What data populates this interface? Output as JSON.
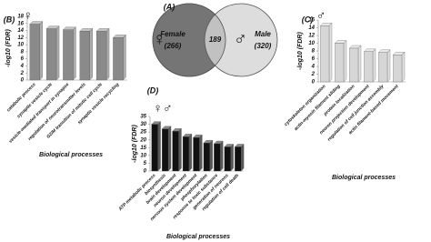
{
  "chart_data": [
    {
      "type": "venn",
      "panel": "(A)",
      "categories": [
        "Female",
        "Male"
      ],
      "values": [
        266,
        320
      ],
      "value_labels": [
        "(266)",
        "(320)"
      ],
      "intersection": 189,
      "symbols": [
        "♀",
        "♂"
      ],
      "colors": [
        "#6e6e6e",
        "#d4d4d4"
      ]
    },
    {
      "type": "bar",
      "panel": "(B)",
      "symbol": "♀",
      "ylabel": "-log10 (FDR)",
      "xlabel": "Biological processes",
      "color": "#8a8a8a",
      "categories": [
        "catabolic process",
        "synaptic vesicle cycle",
        "vesicle-mediated transport in synapse",
        "regulation of neurotransmitter levels",
        "G2/M transition of mitotic cell cycle",
        "synaptic vesicle recycling"
      ],
      "values": [
        15.8,
        14.5,
        14.2,
        13.8,
        13.8,
        12
      ],
      "ylim": [
        0,
        18
      ],
      "yticks": [
        0,
        2,
        4,
        6,
        8,
        10,
        12,
        14,
        16,
        18
      ]
    },
    {
      "type": "bar",
      "panel": "(C)",
      "symbol": "♂",
      "ylabel": "-log10 (FDR)",
      "xlabel": "Biological processes",
      "color": "#d6d6d6",
      "categories": [
        "cytoskeleton organization",
        "actin-myosin filament sliding",
        "protein localization",
        "neuron projection development",
        "regulation of cell junction assembly",
        "actin filament-based movement"
      ],
      "values": [
        14.5,
        10,
        8.7,
        7.8,
        7.6,
        7
      ],
      "ylim": [
        0,
        16
      ],
      "yticks": [
        0,
        2,
        4,
        6,
        8,
        10,
        12,
        14,
        16
      ]
    },
    {
      "type": "bar",
      "panel": "(D)",
      "symbol": "♀♂",
      "ylabel": "-log10 (FDR)",
      "xlabel": "Biological processes",
      "color": "#111111",
      "categories": [
        "ATP metabolic process",
        "biosynthesis",
        "brain development",
        "neuron development",
        "nervous system development",
        "phosphorylation",
        "response to toxic substance",
        "generation of neurons",
        "regulation of cell death"
      ],
      "values": [
        30,
        27,
        25.5,
        22,
        21.5,
        18,
        17.5,
        15.5,
        15.5
      ],
      "ylim": [
        0,
        35
      ],
      "yticks": [
        0,
        5,
        10,
        15,
        20,
        25,
        30,
        35
      ]
    }
  ]
}
